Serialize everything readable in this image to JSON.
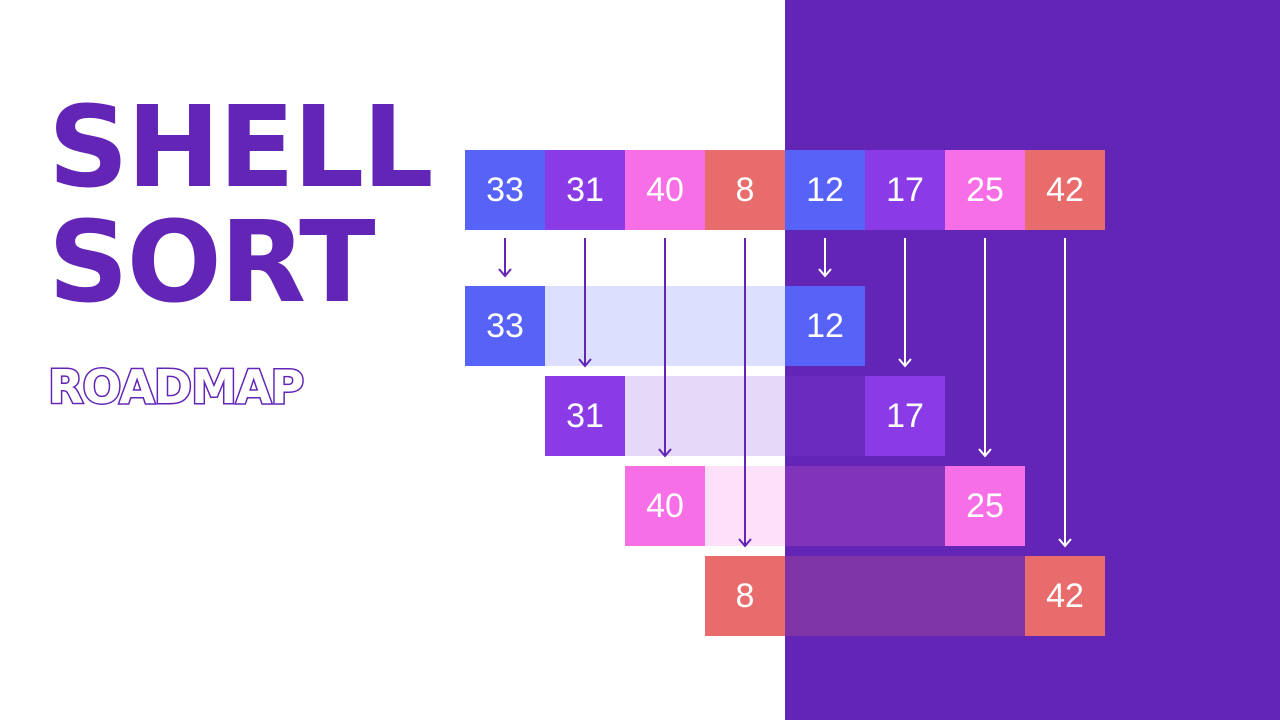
{
  "title": {
    "line1": "SHELL",
    "line2": "SORT",
    "subtitle": "ROADMAP"
  },
  "colors": {
    "background_right": "#6225b6",
    "title": "#6225b6",
    "blue": "#5762f7",
    "purple": "#8a3be6",
    "pink": "#f76fe6",
    "red": "#e86c6c"
  },
  "array": [
    {
      "value": "33",
      "color": "blue"
    },
    {
      "value": "31",
      "color": "purple"
    },
    {
      "value": "40",
      "color": "pink"
    },
    {
      "value": "8",
      "color": "red"
    },
    {
      "value": "12",
      "color": "blue"
    },
    {
      "value": "17",
      "color": "purple"
    },
    {
      "value": "25",
      "color": "pink"
    },
    {
      "value": "42",
      "color": "red"
    }
  ],
  "groups": [
    {
      "values": [
        "33",
        "12"
      ],
      "color": "blue",
      "band_light": "#dcdffd",
      "band_dark": "#6225b6"
    },
    {
      "values": [
        "31",
        "17"
      ],
      "color": "purple",
      "band_light": "#e6d8f9",
      "band_dark": "#6a2abb"
    },
    {
      "values": [
        "40",
        "25"
      ],
      "color": "pink",
      "band_light": "#fde1f8",
      "band_dark": "#8233bc"
    },
    {
      "values": [
        "8",
        "42"
      ],
      "color": "red",
      "band_light": "#ffffff",
      "band_dark": "#7e34a6"
    }
  ]
}
